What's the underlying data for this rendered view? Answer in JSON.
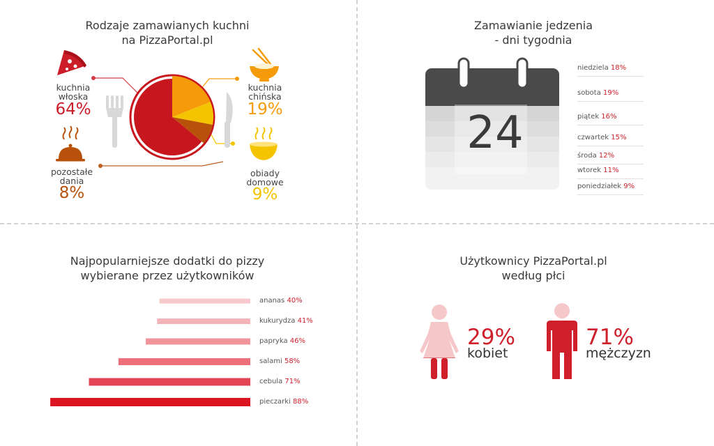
{
  "cuisines": {
    "title_lines": [
      "Rodzaje zamawianych kuchni",
      "na PizzaPortal.pl"
    ],
    "chart_data": {
      "type": "pie",
      "title": "Rodzaje zamawianych kuchni na PizzaPortal.pl",
      "slices": [
        {
          "label_lines": [
            "kuchnia",
            "włoska"
          ],
          "value": 64,
          "display": "64%",
          "color": "#c8161f",
          "icon": "pizza-slice-icon"
        },
        {
          "label_lines": [
            "kuchnia",
            "chińska"
          ],
          "value": 19,
          "display": "19%",
          "color": "#f59b0a",
          "icon": "noodle-bowl-icon"
        },
        {
          "label_lines": [
            "obiady",
            "domowe"
          ],
          "value": 9,
          "display": "9%",
          "color": "#f5c400",
          "icon": "soup-pot-icon"
        },
        {
          "label_lines": [
            "pozostałe",
            "dania"
          ],
          "value": 8,
          "display": "8%",
          "color": "#b8520a",
          "icon": "serving-cloche-icon"
        }
      ]
    }
  },
  "days": {
    "title_lines": [
      "Zamawianie jedzenia",
      "- dni tygodnia"
    ],
    "calendar_number": "24",
    "chart_data": {
      "type": "table",
      "rows": [
        {
          "day": "niedziela",
          "value": 18,
          "display": "18%"
        },
        {
          "day": "sobota",
          "value": 19,
          "display": "19%"
        },
        {
          "day": "piątek",
          "value": 16,
          "display": "16%"
        },
        {
          "day": "czwartek",
          "value": 15,
          "display": "15%"
        },
        {
          "day": "środa",
          "value": 12,
          "display": "12%"
        },
        {
          "day": "wtorek",
          "value": 11,
          "display": "11%"
        },
        {
          "day": "poniedziałek",
          "value": 9,
          "display": "9%"
        }
      ]
    }
  },
  "toppings": {
    "title_lines": [
      "Najpopularniejsze dodatki do pizzy",
      "wybierane przez użytkowników"
    ],
    "chart_data": {
      "type": "bar",
      "orientation": "horizontal",
      "max": 100,
      "categories": [
        "ananas",
        "kukurydza",
        "papryka",
        "salami",
        "cebula",
        "pieczarki"
      ],
      "values": [
        40,
        41,
        46,
        58,
        71,
        88
      ],
      "displays": [
        "40%",
        "41%",
        "46%",
        "58%",
        "71%",
        "88%"
      ],
      "colors": [
        "#f7c9cd",
        "#f4b3b9",
        "#f0939b",
        "#ec6f7a",
        "#e34555",
        "#dc1422"
      ]
    }
  },
  "gender": {
    "title_lines": [
      "Użytkownicy PizzaPortal.pl",
      "według płci"
    ],
    "chart_data": {
      "type": "table",
      "groups": [
        {
          "label": "kobiet",
          "value": 29,
          "display": "29%",
          "icon": "woman-figure-icon"
        },
        {
          "label": "mężczyzn",
          "value": 71,
          "display": "71%",
          "icon": "man-figure-icon"
        }
      ]
    }
  }
}
